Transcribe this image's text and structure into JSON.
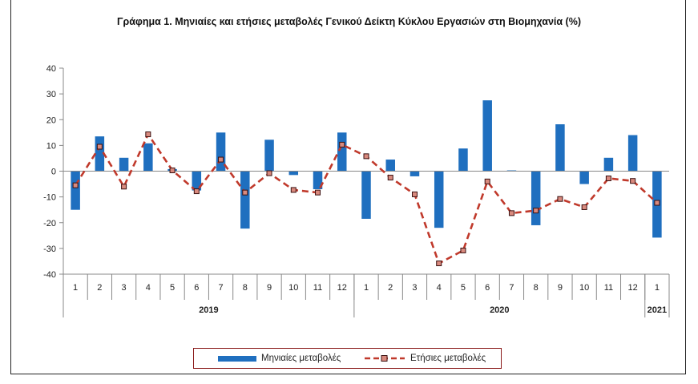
{
  "chart_data": {
    "type": "bar",
    "title": "Γράφημα 1. Μηνιαίες και ετήσιες μεταβολές  Γενικού Δείκτη Κύκλου Εργασιών στη Βιομηχανία (%)",
    "categories": [
      "1",
      "2",
      "3",
      "4",
      "5",
      "6",
      "7",
      "8",
      "9",
      "10",
      "11",
      "12",
      "1",
      "2",
      "3",
      "4",
      "5",
      "6",
      "7",
      "8",
      "9",
      "10",
      "11",
      "12",
      "1"
    ],
    "groups": [
      {
        "label": "2019",
        "count": 12
      },
      {
        "label": "2020",
        "count": 12
      },
      {
        "label": "2021",
        "count": 1
      }
    ],
    "ylim": [
      -40,
      40
    ],
    "yticks": [
      40,
      30,
      20,
      10,
      0,
      -10,
      -20,
      -30,
      -40
    ],
    "grid": false,
    "legend_position": "bottom",
    "series": [
      {
        "name": "Μηνιαίες μεταβολές",
        "type": "bar",
        "color": "#1f6fbf",
        "values": [
          -15,
          13.5,
          5.2,
          10.8,
          0.8,
          -7.5,
          15,
          -22.3,
          12.2,
          -1.5,
          -7,
          15,
          -18.5,
          4.5,
          -2,
          -22,
          8.8,
          27.5,
          0.3,
          -21,
          18.2,
          -5,
          5.2,
          14,
          -25.8
        ]
      },
      {
        "name": "Ετήσιες μεταβολές",
        "type": "line",
        "color": "#c0392b",
        "values": [
          -5.5,
          9.5,
          -6,
          14.3,
          0.3,
          -7.8,
          4.5,
          -8.3,
          -0.8,
          -7.3,
          -8.3,
          10.3,
          5.8,
          -2.5,
          -9,
          -35.8,
          -30.8,
          -4,
          -16.3,
          -15.3,
          -10.8,
          -14,
          -2.8,
          -3.8,
          -12.3
        ]
      }
    ]
  }
}
